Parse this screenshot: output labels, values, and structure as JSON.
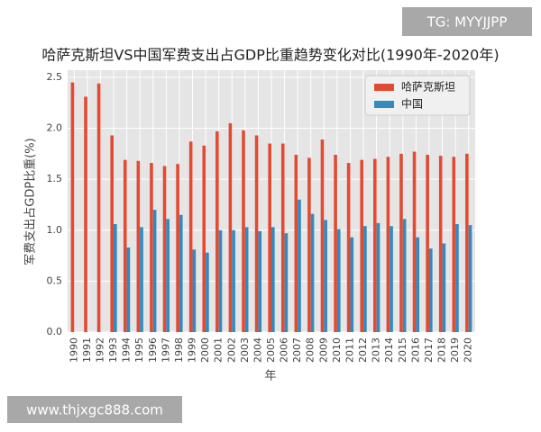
{
  "chart_data": {
    "type": "bar",
    "title": "哈萨克斯坦VS中国军费支出占GDP比重趋势变化对比(1990年-2020年)",
    "x_label": "年",
    "y_label": "军费支出占GDP比重(%)",
    "categories": [
      "1990",
      "1991",
      "1992",
      "1993",
      "1994",
      "1995",
      "1996",
      "1997",
      "1998",
      "1999",
      "2000",
      "2001",
      "2002",
      "2003",
      "2004",
      "2005",
      "2006",
      "2007",
      "2008",
      "2009",
      "2010",
      "2011",
      "2012",
      "2013",
      "2014",
      "2015",
      "2016",
      "2017",
      "2018",
      "2019",
      "2020"
    ],
    "series": [
      {
        "name": "哈萨克斯坦",
        "color": "#e24a33",
        "values": [
          2.45,
          2.31,
          2.44,
          1.93,
          1.69,
          1.68,
          1.66,
          1.63,
          1.65,
          1.87,
          1.83,
          1.97,
          2.05,
          1.98,
          1.93,
          1.85,
          1.85,
          1.74,
          1.71,
          1.89,
          1.74,
          1.66,
          1.69,
          1.7,
          1.72,
          1.75,
          1.77,
          1.74,
          1.73,
          1.72,
          1.75
        ]
      },
      {
        "name": "中国",
        "color": "#348abd",
        "values": [
          null,
          null,
          null,
          1.06,
          0.83,
          1.03,
          1.2,
          1.11,
          1.15,
          0.81,
          0.78,
          1.0,
          1.0,
          1.03,
          0.99,
          1.03,
          0.97,
          1.3,
          1.16,
          1.1,
          1.01,
          0.93,
          1.04,
          1.07,
          1.04,
          1.11,
          0.93,
          0.82,
          0.87,
          1.06,
          1.05
        ]
      }
    ],
    "ylim": [
      0,
      2.57
    ],
    "yticks": [
      {
        "value": 0,
        "label": "0.0"
      },
      0.5,
      {
        "value": 1,
        "label": "1.0"
      },
      1.5,
      {
        "value": 2,
        "label": "2.0"
      },
      2.5
    ],
    "grid": true,
    "legend": "upper right"
  },
  "watermarks": [
    "TG: MYYJJPP",
    "www.thjxgc888.com"
  ]
}
